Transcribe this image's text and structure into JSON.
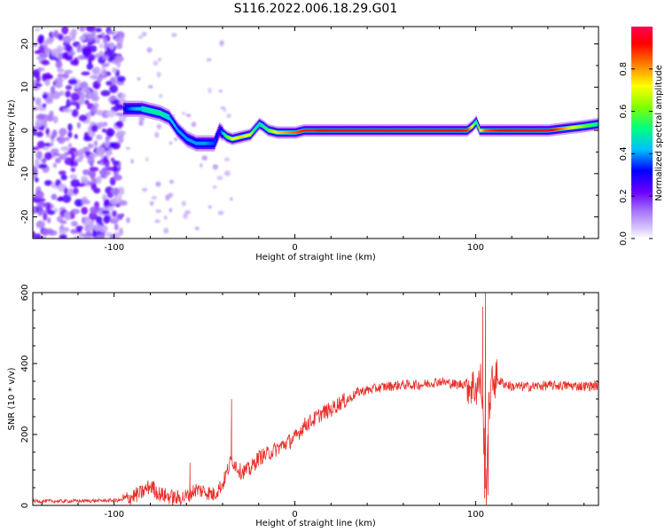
{
  "title": "S116.2022.006.18.29.G01",
  "chart_data": [
    {
      "type": "heatmap",
      "title": "",
      "xlabel": "Height of straight line (km)",
      "ylabel": "Frequency (Hz)",
      "xlim": [
        -145,
        168
      ],
      "ylim": [
        -25,
        24
      ],
      "xticks": [
        -100,
        0,
        100
      ],
      "yticks": [
        -20,
        -10,
        0,
        10,
        20
      ],
      "xtick_labels": [
        "-100",
        "0",
        "100"
      ],
      "ytick_labels": [
        "-20",
        "-10",
        "0",
        "10",
        "20"
      ],
      "track": {
        "x": [
          -95,
          -90,
          -85,
          -80,
          -75,
          -70,
          -65,
          -60,
          -55,
          -50,
          -45,
          -42,
          -38,
          -35,
          -30,
          -25,
          -22,
          -20,
          -18,
          -15,
          -10,
          -5,
          0,
          5,
          10,
          20,
          40,
          60,
          80,
          95,
          98,
          100,
          102,
          105,
          110,
          120,
          140,
          160,
          168
        ],
        "y": [
          5,
          5,
          5,
          4.5,
          4,
          3,
          0,
          -2,
          -3,
          -3,
          -3,
          0,
          -1.5,
          -2,
          -1.5,
          -1,
          0.5,
          1.5,
          1,
          0,
          -0.5,
          -0.5,
          -0.5,
          0,
          0,
          0,
          0,
          0,
          0,
          0,
          1,
          2,
          0,
          0,
          0,
          0,
          0,
          1,
          1.5
        ],
        "amplitude": [
          0.3,
          0.4,
          0.45,
          0.5,
          0.5,
          0.45,
          0.4,
          0.4,
          0.4,
          0.4,
          0.35,
          0.3,
          0.6,
          0.7,
          0.75,
          0.7,
          0.5,
          0.45,
          0.5,
          0.6,
          0.75,
          0.8,
          0.85,
          0.9,
          0.9,
          0.95,
          0.95,
          0.95,
          0.95,
          0.9,
          0.7,
          0.5,
          0.7,
          0.85,
          0.9,
          0.95,
          0.95,
          0.6,
          0.5
        ]
      },
      "noise_region": {
        "x_range": [
          -145,
          -95
        ],
        "y_range": [
          -25,
          24
        ],
        "amplitude_range": [
          0.02,
          0.15
        ]
      },
      "colorbar": {
        "label": "Normalized spectral amplitude",
        "range": [
          0,
          1
        ],
        "ticks": [
          0.0,
          0.2,
          0.4,
          0.6,
          0.8
        ],
        "tick_labels": [
          "0.0",
          "0.2",
          "0.4",
          "0.6",
          "0.8"
        ],
        "colors": [
          "#ffffff",
          "#ab7ff7",
          "#6a00ff",
          "#0000ff",
          "#00bfff",
          "#00ff7f",
          "#7fff00",
          "#ffff00",
          "#ff7f00",
          "#ff0000",
          "#ff0055"
        ]
      }
    },
    {
      "type": "line",
      "title": "",
      "xlabel": "Height of straight line (km)",
      "ylabel": "SNR (10 * v/v)",
      "xlim": [
        -145,
        168
      ],
      "ylim": [
        0,
        600
      ],
      "xticks": [
        -100,
        0,
        100
      ],
      "yticks": [
        0,
        200,
        400,
        600
      ],
      "xtick_labels": [
        "-100",
        "0",
        "100"
      ],
      "ytick_labels": [
        "0",
        "200",
        "400",
        "600"
      ],
      "line_color": "#e8302a",
      "x": [
        -145,
        -130,
        -110,
        -95,
        -85,
        -80,
        -75,
        -70,
        -65,
        -60,
        -55,
        -50,
        -45,
        -40,
        -35,
        -30,
        -25,
        -20,
        -15,
        -10,
        -5,
        0,
        5,
        10,
        15,
        20,
        25,
        30,
        35,
        40,
        50,
        60,
        70,
        75,
        80,
        85,
        90,
        95,
        100,
        103,
        104,
        105,
        106,
        107,
        108,
        110,
        115,
        120,
        130,
        140,
        150,
        160,
        168
      ],
      "y": [
        12,
        12,
        13,
        15,
        35,
        55,
        32,
        25,
        20,
        25,
        45,
        40,
        30,
        60,
        130,
        95,
        100,
        135,
        145,
        160,
        175,
        190,
        225,
        240,
        260,
        270,
        290,
        300,
        320,
        325,
        335,
        340,
        340,
        345,
        350,
        345,
        340,
        345,
        330,
        350,
        260,
        140,
        50,
        240,
        310,
        360,
        345,
        335,
        335,
        338,
        338,
        336,
        338
      ],
      "spikes": [
        {
          "x": -35,
          "y": 300
        },
        {
          "x": 104,
          "y": 560
        },
        {
          "x": 105.5,
          "y": 610
        },
        {
          "x": 105,
          "y": 20
        },
        {
          "x": 107,
          "y": 30
        },
        {
          "x": -58,
          "y": 120
        },
        {
          "x": -78,
          "y": 68
        }
      ]
    }
  ]
}
